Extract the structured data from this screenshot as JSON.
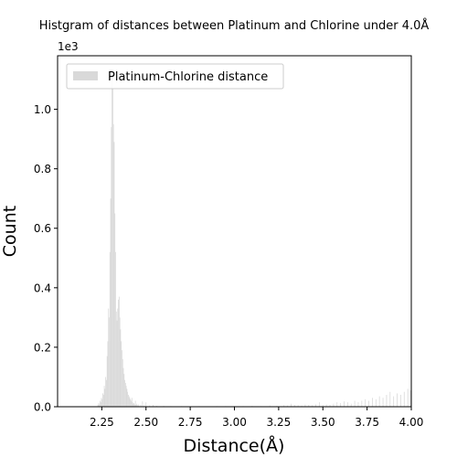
{
  "chart_data": {
    "type": "bar",
    "title": "Histgram of distances between Platinum and Chlorine under 4.0Å",
    "xlabel": "Distance(Å)",
    "ylabel": "Count",
    "y_offset_label": "1e3",
    "xlim": [
      2.0,
      4.0
    ],
    "ylim": [
      0,
      1.18
    ],
    "y_unit_multiplier": 1000,
    "x_ticks": [
      2.25,
      2.5,
      2.75,
      3.0,
      3.25,
      3.5,
      3.75,
      4.0
    ],
    "x_tick_labels": [
      "2.25",
      "2.50",
      "2.75",
      "3.00",
      "3.25",
      "3.50",
      "3.75",
      "4.00"
    ],
    "y_ticks": [
      0,
      0.2,
      0.4,
      0.6,
      0.8,
      1.0
    ],
    "y_tick_labels": [
      "0.0",
      "0.2",
      "0.4",
      "0.6",
      "0.8",
      "1.0"
    ],
    "bin_width": 0.004,
    "legend": {
      "label": "Platinum-Chlorine distance",
      "position": "upper left"
    },
    "grid": false,
    "colors": {
      "bar": "#d9d9d9",
      "axis": "#000000",
      "legend_border": "#cccccc"
    },
    "series": [
      {
        "values": [
          [
            2.228,
            0.006
          ],
          [
            2.232,
            0.012
          ],
          [
            2.236,
            0.008
          ],
          [
            2.24,
            0.02
          ],
          [
            2.244,
            0.015
          ],
          [
            2.248,
            0.03
          ],
          [
            2.252,
            0.025
          ],
          [
            2.256,
            0.045
          ],
          [
            2.26,
            0.04
          ],
          [
            2.264,
            0.07
          ],
          [
            2.268,
            0.06
          ],
          [
            2.272,
            0.1
          ],
          [
            2.276,
            0.09
          ],
          [
            2.28,
            0.17
          ],
          [
            2.284,
            0.22
          ],
          [
            2.288,
            0.33
          ],
          [
            2.292,
            0.3
          ],
          [
            2.296,
            0.52
          ],
          [
            2.3,
            0.7
          ],
          [
            2.304,
            0.94
          ],
          [
            2.308,
            1.11
          ],
          [
            2.312,
            1.07
          ],
          [
            2.316,
            0.95
          ],
          [
            2.32,
            0.89
          ],
          [
            2.324,
            0.65
          ],
          [
            2.328,
            0.52
          ],
          [
            2.332,
            0.32
          ],
          [
            2.336,
            0.29
          ],
          [
            2.34,
            0.33
          ],
          [
            2.344,
            0.36
          ],
          [
            2.348,
            0.37
          ],
          [
            2.352,
            0.3
          ],
          [
            2.356,
            0.26
          ],
          [
            2.36,
            0.22
          ],
          [
            2.364,
            0.19
          ],
          [
            2.368,
            0.16
          ],
          [
            2.372,
            0.13
          ],
          [
            2.376,
            0.11
          ],
          [
            2.38,
            0.09
          ],
          [
            2.384,
            0.08
          ],
          [
            2.388,
            0.07
          ],
          [
            2.392,
            0.06
          ],
          [
            2.396,
            0.05
          ],
          [
            2.4,
            0.04
          ],
          [
            2.404,
            0.035
          ],
          [
            2.408,
            0.03
          ],
          [
            2.412,
            0.025
          ],
          [
            2.416,
            0.02
          ],
          [
            2.42,
            0.03
          ],
          [
            2.424,
            0.015
          ],
          [
            2.428,
            0.01
          ],
          [
            2.432,
            0.012
          ],
          [
            2.436,
            0.008
          ],
          [
            2.44,
            0.02
          ],
          [
            2.444,
            0.006
          ],
          [
            2.448,
            0.01
          ],
          [
            2.452,
            0.005
          ],
          [
            2.456,
            0.008
          ],
          [
            2.46,
            0.004
          ],
          [
            2.47,
            0.006
          ],
          [
            2.48,
            0.018
          ],
          [
            2.49,
            0.004
          ],
          [
            2.5,
            0.015
          ],
          [
            2.52,
            0.004
          ],
          [
            2.54,
            0.006
          ],
          [
            2.56,
            0.003
          ],
          [
            2.6,
            0.003
          ],
          [
            2.64,
            0.002
          ],
          [
            2.7,
            0.002
          ],
          [
            2.8,
            0.002
          ],
          [
            2.9,
            0.002
          ],
          [
            2.95,
            0.002
          ],
          [
            3.0,
            0.003
          ],
          [
            3.05,
            0.002
          ],
          [
            3.1,
            0.003
          ],
          [
            3.15,
            0.002
          ],
          [
            3.2,
            0.004
          ],
          [
            3.24,
            0.003
          ],
          [
            3.28,
            0.005
          ],
          [
            3.3,
            0.004
          ],
          [
            3.32,
            0.01
          ],
          [
            3.34,
            0.006
          ],
          [
            3.36,
            0.005
          ],
          [
            3.38,
            0.004
          ],
          [
            3.4,
            0.008
          ],
          [
            3.42,
            0.006
          ],
          [
            3.44,
            0.005
          ],
          [
            3.46,
            0.008
          ],
          [
            3.48,
            0.015
          ],
          [
            3.5,
            0.006
          ],
          [
            3.52,
            0.008
          ],
          [
            3.54,
            0.006
          ],
          [
            3.56,
            0.01
          ],
          [
            3.58,
            0.015
          ],
          [
            3.6,
            0.012
          ],
          [
            3.62,
            0.018
          ],
          [
            3.64,
            0.015
          ],
          [
            3.66,
            0.01
          ],
          [
            3.68,
            0.02
          ],
          [
            3.7,
            0.015
          ],
          [
            3.72,
            0.02
          ],
          [
            3.74,
            0.025
          ],
          [
            3.76,
            0.02
          ],
          [
            3.78,
            0.03
          ],
          [
            3.8,
            0.025
          ],
          [
            3.82,
            0.035
          ],
          [
            3.84,
            0.03
          ],
          [
            3.86,
            0.04
          ],
          [
            3.88,
            0.05
          ],
          [
            3.9,
            0.035
          ],
          [
            3.92,
            0.045
          ],
          [
            3.94,
            0.04
          ],
          [
            3.96,
            0.05
          ],
          [
            3.98,
            0.06
          ],
          [
            3.996,
            0.055
          ]
        ]
      }
    ]
  }
}
